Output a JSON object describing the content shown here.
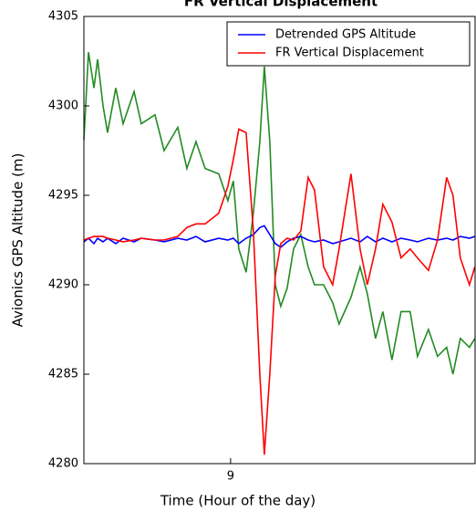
{
  "chart_data": {
    "type": "line",
    "title": "FR Vertical Displacement",
    "xlabel": "Time (Hour of the day)",
    "ylabel": "Avionics GPS Altitude (m)",
    "ylabel_color": "#228b22",
    "x": [
      8.85,
      8.8547,
      8.8603,
      8.864,
      8.8696,
      8.8742,
      8.8826,
      8.8901,
      8.9013,
      8.9087,
      8.9227,
      8.932,
      8.946,
      8.9553,
      8.9646,
      8.974,
      8.9879,
      8.9972,
      9.0028,
      9.0084,
      9.0159,
      9.0233,
      9.0299,
      9.0345,
      9.0401,
      9.0457,
      9.0513,
      9.0578,
      9.0644,
      9.0718,
      9.0793,
      9.0858,
      9.0951,
      9.1044,
      9.1109,
      9.1231,
      9.1324,
      9.1398,
      9.1482,
      9.1557,
      9.165,
      9.1743,
      9.1836,
      9.1911,
      9.2023,
      9.2116,
      9.2209,
      9.2274,
      9.2349,
      9.2442,
      9.2498
    ],
    "series": [
      {
        "name": "Avionics GPS Altitude",
        "color": "#228b22",
        "legend": false,
        "values": [
          4298.1,
          4303,
          4301,
          4302.6,
          4300,
          4298.5,
          4301,
          4299,
          4300.8,
          4299,
          4299.5,
          4297.5,
          4298.8,
          4296.5,
          4298,
          4296.5,
          4296.2,
          4294.7,
          4295.8,
          4292,
          4290.7,
          4294,
          4298,
          4302.2,
          4298,
          4290,
          4288.8,
          4289.8,
          4292,
          4292.8,
          4291,
          4290,
          4290,
          4289,
          4287.8,
          4289.3,
          4291,
          4289.5,
          4287,
          4288.5,
          4285.8,
          4288.5,
          4288.5,
          4286,
          4287.5,
          4286,
          4286.5,
          4285,
          4287,
          4286.5,
          4287
        ]
      },
      {
        "name": "Detrended GPS Altitude",
        "color": "#0000ff",
        "legend": true,
        "values": [
          4292.4,
          4292.6,
          4292.3,
          4292.6,
          4292.4,
          4292.6,
          4292.3,
          4292.6,
          4292.4,
          4292.6,
          4292.5,
          4292.4,
          4292.6,
          4292.5,
          4292.7,
          4292.4,
          4292.6,
          4292.5,
          4292.6,
          4292.3,
          4292.6,
          4292.8,
          4293.2,
          4293.3,
          4292.8,
          4292.3,
          4292.1,
          4292.4,
          4292.6,
          4292.7,
          4292.5,
          4292.4,
          4292.5,
          4292.3,
          4292.4,
          4292.6,
          4292.4,
          4292.7,
          4292.4,
          4292.6,
          4292.4,
          4292.6,
          4292.5,
          4292.4,
          4292.6,
          4292.5,
          4292.6,
          4292.5,
          4292.7,
          4292.6,
          4292.7
        ]
      },
      {
        "name": "FR Vertical Displacement",
        "color": "#ff0000",
        "legend": true,
        "values": [
          4292.5,
          4292.6,
          4292.7,
          4292.7,
          4292.7,
          4292.6,
          4292.5,
          4292.4,
          4292.5,
          4292.6,
          4292.5,
          4292.5,
          4292.7,
          4293.2,
          4293.4,
          4293.4,
          4294,
          4295.5,
          4297,
          4298.7,
          4298.5,
          4293,
          4285,
          4280.5,
          4285,
          4290.5,
          4292.3,
          4292.6,
          4292.5,
          4293,
          4296,
          4295.3,
          4291,
          4290,
          4292,
          4296.2,
          4292,
          4290,
          4292,
          4294.5,
          4293.5,
          4291.5,
          4292,
          4291.5,
          4290.8,
          4292.5,
          4296,
          4295,
          4291.5,
          4290,
          4291
        ]
      }
    ],
    "xlim": [
      8.85,
      9.25
    ],
    "xticks": [
      9
    ],
    "ylim": [
      4280,
      4305
    ],
    "yticks": [
      4280,
      4285,
      4290,
      4295,
      4300,
      4305
    ],
    "grid": false,
    "legend_position": "upper right"
  }
}
